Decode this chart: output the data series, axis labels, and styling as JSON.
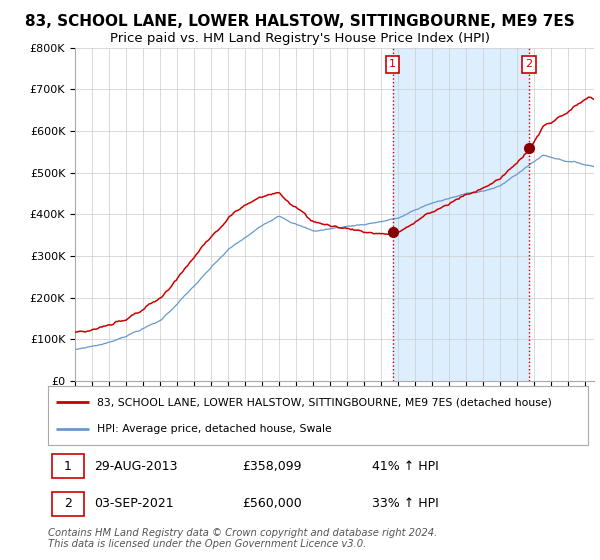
{
  "title": "83, SCHOOL LANE, LOWER HALSTOW, SITTINGBOURNE, ME9 7ES",
  "subtitle": "Price paid vs. HM Land Registry's House Price Index (HPI)",
  "ylim": [
    0,
    800000
  ],
  "yticks": [
    0,
    100000,
    200000,
    300000,
    400000,
    500000,
    600000,
    700000,
    800000
  ],
  "ytick_labels": [
    "£0",
    "£100K",
    "£200K",
    "£300K",
    "£400K",
    "£500K",
    "£600K",
    "£700K",
    "£800K"
  ],
  "red_line_color": "#cc0000",
  "blue_line_color": "#6699cc",
  "shade_color": "#ddeeff",
  "marker1_year": 2013.66,
  "marker1_value": 358099,
  "marker2_year": 2021.67,
  "marker2_value": 560000,
  "legend_red": "83, SCHOOL LANE, LOWER HALSTOW, SITTINGBOURNE, ME9 7ES (detached house)",
  "legend_blue": "HPI: Average price, detached house, Swale",
  "footer": "Contains HM Land Registry data © Crown copyright and database right 2024.\nThis data is licensed under the Open Government Licence v3.0.",
  "background_color": "#ffffff",
  "plot_bg_color": "#ffffff",
  "grid_color": "#cccccc",
  "vline_color": "#cc0000",
  "title_fontsize": 11,
  "subtitle_fontsize": 9.5,
  "tick_fontsize": 8
}
